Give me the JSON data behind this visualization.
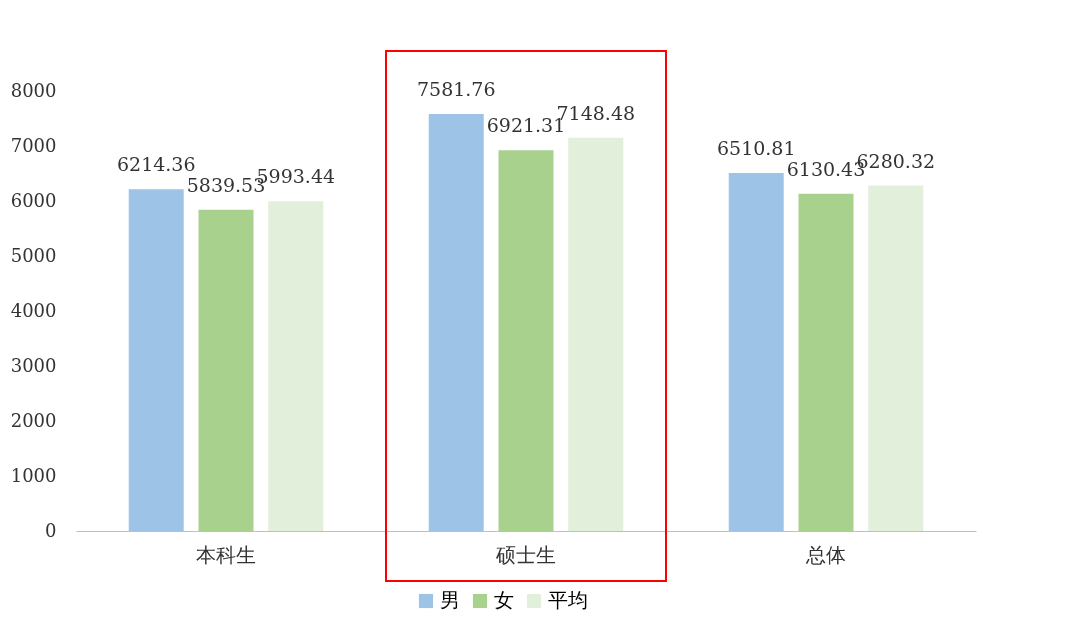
{
  "chart_data": {
    "type": "bar",
    "categories": [
      "本科生",
      "硕士生",
      "总体"
    ],
    "series": [
      {
        "name": "男",
        "color": "#9dc3e6",
        "values": [
          6214.36,
          7581.76,
          6510.81
        ]
      },
      {
        "name": "女",
        "color": "#a9d18e",
        "values": [
          5839.53,
          6921.31,
          6130.43
        ]
      },
      {
        "name": "平均",
        "color": "#e2efda",
        "values": [
          5993.44,
          7148.48,
          6280.32
        ]
      }
    ],
    "ylim": [
      0,
      8000
    ],
    "yticks": [
      0,
      1000,
      2000,
      3000,
      4000,
      5000,
      6000,
      7000,
      8000
    ],
    "data_labels": true,
    "grid": false,
    "legend": "bottom"
  }
}
